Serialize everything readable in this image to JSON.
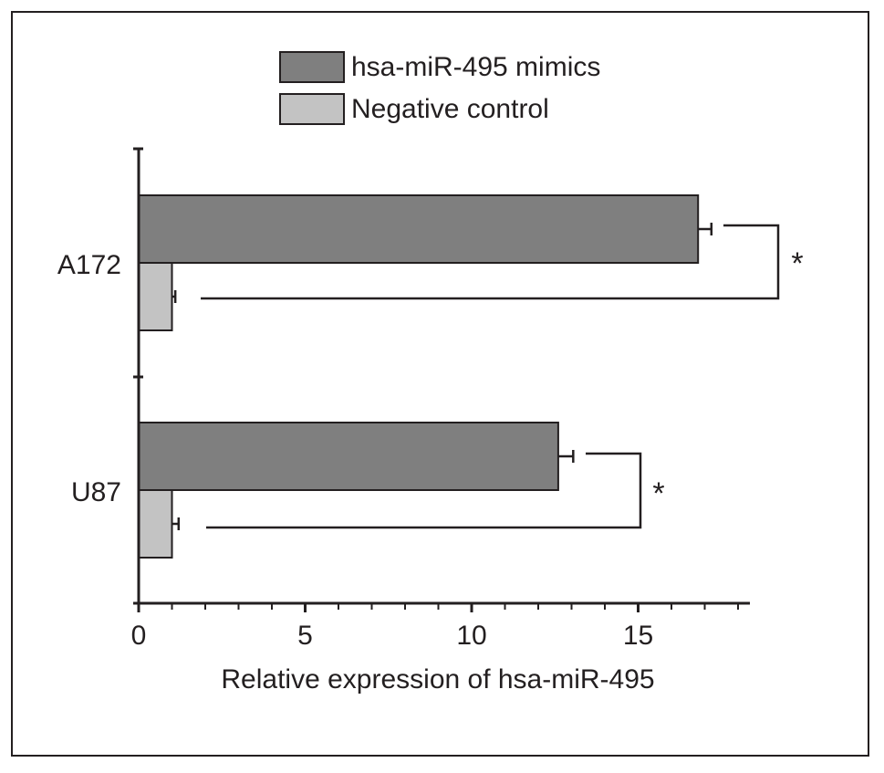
{
  "chart_data": {
    "type": "bar",
    "orientation": "horizontal",
    "categories": [
      "A172",
      "U87"
    ],
    "series": [
      {
        "name": "hsa-miR-495 mimics",
        "color": "#7f7f7f",
        "values": [
          16.8,
          12.6
        ],
        "errors": [
          0.4,
          0.45
        ]
      },
      {
        "name": "Negative control",
        "color": "#c3c3c3",
        "values": [
          1.0,
          1.0
        ],
        "errors": [
          0.1,
          0.2
        ]
      }
    ],
    "xlabel": "Relative expression of hsa-miR-495",
    "ylabel": "",
    "xlim": [
      0,
      18.5
    ],
    "xticks": [
      "0",
      "5",
      "10",
      "15"
    ],
    "significance": [
      {
        "category": "A172",
        "label": "*"
      },
      {
        "category": "U87",
        "label": "*"
      }
    ],
    "legend_position": "top",
    "grid": false
  }
}
